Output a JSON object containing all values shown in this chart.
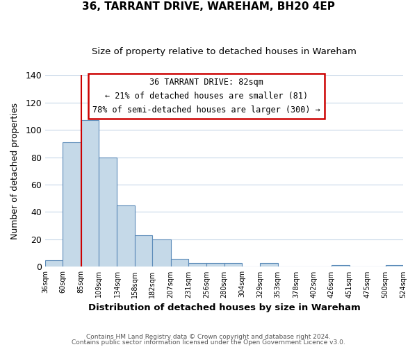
{
  "title": "36, TARRANT DRIVE, WAREHAM, BH20 4EP",
  "subtitle": "Size of property relative to detached houses in Wareham",
  "xlabel": "Distribution of detached houses by size in Wareham",
  "ylabel": "Number of detached properties",
  "bar_color": "#c5d9e8",
  "bar_edge_color": "#5a8ab8",
  "background_color": "#ffffff",
  "grid_color": "#c8d8e8",
  "bins": [
    36,
    60,
    85,
    109,
    134,
    158,
    182,
    207,
    231,
    256,
    280,
    304,
    329,
    353,
    378,
    402,
    426,
    451,
    475,
    500,
    524
  ],
  "bin_labels": [
    "36sqm",
    "60sqm",
    "85sqm",
    "109sqm",
    "134sqm",
    "158sqm",
    "182sqm",
    "207sqm",
    "231sqm",
    "256sqm",
    "280sqm",
    "304sqm",
    "329sqm",
    "353sqm",
    "378sqm",
    "402sqm",
    "426sqm",
    "451sqm",
    "475sqm",
    "500sqm",
    "524sqm"
  ],
  "counts": [
    5,
    91,
    107,
    80,
    45,
    23,
    20,
    6,
    3,
    3,
    3,
    0,
    3,
    0,
    0,
    0,
    1,
    0,
    0,
    1
  ],
  "ylim": [
    0,
    140
  ],
  "yticks": [
    0,
    20,
    40,
    60,
    80,
    100,
    120,
    140
  ],
  "vline_x": 85,
  "vline_color": "#cc0000",
  "annotation_title": "36 TARRANT DRIVE: 82sqm",
  "annotation_line1": "← 21% of detached houses are smaller (81)",
  "annotation_line2": "78% of semi-detached houses are larger (300) →",
  "annotation_box_color": "#ffffff",
  "annotation_box_edge": "#cc0000",
  "footer1": "Contains HM Land Registry data © Crown copyright and database right 2024.",
  "footer2": "Contains public sector information licensed under the Open Government Licence v3.0."
}
